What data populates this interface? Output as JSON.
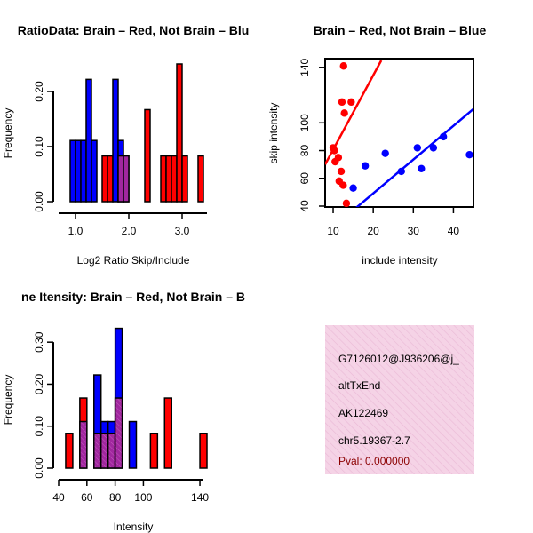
{
  "chart_data": [
    {
      "type": "bar",
      "id": "ratio",
      "title": "RatioData: Brain – Red, Not Brain – Blu",
      "xlabel": "Log2 Ratio Skip/Include",
      "ylabel": "Frequency",
      "xlim": [
        0.8,
        3.6
      ],
      "ylim": [
        0,
        0.25
      ],
      "xticks": [
        1.0,
        2.0,
        3.0
      ],
      "xtick_labels": [
        "1.0",
        "2.0",
        "3.0"
      ],
      "yticks": [
        0.0,
        0.1,
        0.2
      ],
      "ytick_labels": [
        "0.00",
        "0.10",
        "0.20"
      ],
      "bin_width": 0.1,
      "series": [
        {
          "name": "Not Brain",
          "color": "#0000ff",
          "bins": [
            [
              0.9,
              0.111
            ],
            [
              1.0,
              0.111
            ],
            [
              1.1,
              0.111
            ],
            [
              1.2,
              0.222
            ],
            [
              1.3,
              0.111
            ],
            [
              1.7,
              0.222
            ],
            [
              1.8,
              0.111
            ],
            [
              1.9,
              0.083
            ]
          ]
        },
        {
          "name": "Brain",
          "color": "#ff0000",
          "bins": [
            [
              1.5,
              0.083
            ],
            [
              1.6,
              0.083
            ],
            [
              1.8,
              0.083
            ],
            [
              1.9,
              0.083
            ],
            [
              2.3,
              0.167
            ],
            [
              2.6,
              0.083
            ],
            [
              2.7,
              0.083
            ],
            [
              2.8,
              0.083
            ],
            [
              2.9,
              0.25
            ],
            [
              3.0,
              0.083
            ],
            [
              3.3,
              0.083
            ]
          ]
        }
      ]
    },
    {
      "type": "scatter",
      "id": "scatter",
      "title": "Brain – Red, Not Brain – Blue",
      "xlabel": "include intensity",
      "ylabel": "skip intensity",
      "xlim": [
        8,
        45
      ],
      "ylim": [
        40,
        145
      ],
      "xticks": [
        10,
        20,
        30,
        40
      ],
      "xtick_labels": [
        "10",
        "20",
        "30",
        "40"
      ],
      "yticks": [
        40,
        60,
        80,
        100,
        140
      ],
      "ytick_labels": [
        "40",
        "60",
        "80",
        "100",
        "140"
      ],
      "series": [
        {
          "name": "Brain",
          "color": "#ff0000",
          "points": [
            [
              10,
              82
            ],
            [
              10.3,
              80
            ],
            [
              10.5,
              72
            ],
            [
              11.3,
              75
            ],
            [
              11.5,
              58
            ],
            [
              12,
              65
            ],
            [
              12.2,
              115
            ],
            [
              12.6,
              141
            ],
            [
              12.8,
              107
            ],
            [
              12.5,
              55
            ],
            [
              13.3,
              42
            ],
            [
              14.5,
              115
            ]
          ],
          "fit": [
            [
              8,
              70
            ],
            [
              22,
              145
            ]
          ]
        },
        {
          "name": "Not Brain",
          "color": "#0000ff",
          "points": [
            [
              15,
              53
            ],
            [
              18,
              69
            ],
            [
              23,
              78
            ],
            [
              27,
              65
            ],
            [
              31,
              82
            ],
            [
              32,
              67
            ],
            [
              35,
              82
            ],
            [
              37.5,
              90
            ],
            [
              44,
              77
            ]
          ],
          "fit": [
            [
              15,
              37
            ],
            [
              45,
              110
            ]
          ]
        }
      ]
    },
    {
      "type": "bar",
      "id": "intensity",
      "title": "ne Itensity: Brain – Red, Not Brain – B",
      "xlabel": "Intensity",
      "ylabel": "Frequency",
      "xlim": [
        40,
        145
      ],
      "ylim": [
        0,
        0.33
      ],
      "xticks": [
        40,
        60,
        80,
        100,
        140
      ],
      "xtick_labels": [
        "40",
        "60",
        "80",
        "100",
        "140"
      ],
      "yticks": [
        0.0,
        0.1,
        0.2,
        0.3
      ],
      "ytick_labels": [
        "0.00",
        "0.10",
        "0.20",
        "0.30"
      ],
      "bin_width": 5,
      "series": [
        {
          "name": "Not Brain",
          "color": "#0000ff",
          "bins": [
            [
              55,
              0.111
            ],
            [
              65,
              0.222
            ],
            [
              70,
              0.111
            ],
            [
              75,
              0.111
            ],
            [
              80,
              0.333
            ],
            [
              90,
              0.111
            ]
          ]
        },
        {
          "name": "Brain",
          "color": "#ff0000",
          "bins": [
            [
              45,
              0.083
            ],
            [
              55,
              0.167
            ],
            [
              65,
              0.083
            ],
            [
              70,
              0.083
            ],
            [
              75,
              0.083
            ],
            [
              80,
              0.167
            ],
            [
              105,
              0.083
            ],
            [
              115,
              0.167
            ],
            [
              140,
              0.083
            ]
          ]
        }
      ]
    }
  ],
  "info_box": {
    "lines": [
      "G7126012@J936206@j_",
      "altTxEnd",
      "AK122469",
      "chr5.19367-2.7"
    ],
    "pval": "Pval: 0.000000",
    "fill": "#f5d3e6",
    "hatch": "#e8b8d4",
    "pval_color": "#8b0000"
  },
  "overlap_color": "#a1279f"
}
